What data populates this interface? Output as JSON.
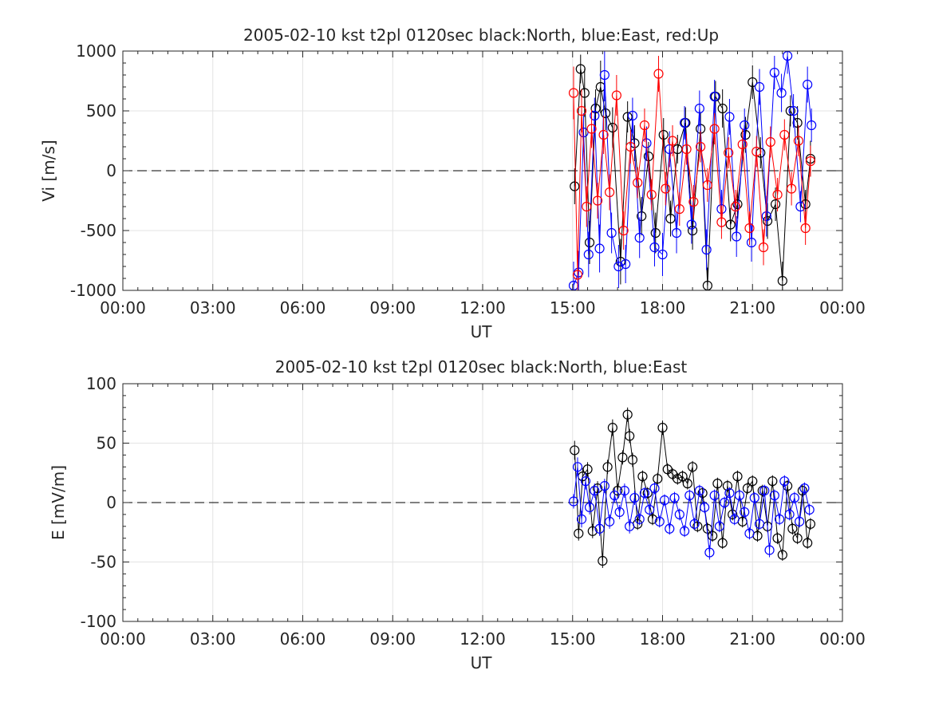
{
  "chart_data": [
    {
      "type": "scatter",
      "title": "2005-02-10 kst t2pl 0120sec black:North, blue:East, red:Up",
      "xlabel": "UT",
      "ylabel": "Vi [m/s]",
      "xlim": [
        "00:00",
        "00:00"
      ],
      "ylim": [
        -1000,
        1000
      ],
      "xticks": [
        "00:00",
        "03:00",
        "06:00",
        "09:00",
        "12:00",
        "15:00",
        "18:00",
        "21:00",
        "00:00"
      ],
      "yticks": [
        "1000",
        "500",
        "0",
        "-500",
        "-1000"
      ],
      "grid": true,
      "zero_line": "dashed",
      "series": [
        {
          "color": "#000000",
          "description_color": "black",
          "x": [
            "15:04",
            "15:16",
            "15:24",
            "15:34",
            "15:46",
            "15:56",
            "16:06",
            "16:20",
            "16:36",
            "16:50",
            "17:04",
            "17:18",
            "17:32",
            "17:46",
            "18:02",
            "18:16",
            "18:30",
            "18:46",
            "19:00",
            "19:16",
            "19:30",
            "19:46",
            "20:00",
            "20:16",
            "20:30",
            "20:46",
            "21:00",
            "21:16",
            "21:30",
            "21:46",
            "22:00",
            "22:16",
            "22:30",
            "22:46",
            "22:56"
          ],
          "y": [
            -130,
            850,
            650,
            -600,
            520,
            700,
            480,
            360,
            -760,
            450,
            230,
            -380,
            120,
            -520,
            300,
            -400,
            180,
            400,
            -500,
            350,
            -960,
            620,
            520,
            -450,
            -280,
            300,
            740,
            150,
            -420,
            -280,
            -920,
            500,
            400,
            -280,
            100
          ],
          "yerr": [
            150,
            120,
            200,
            180,
            160,
            220,
            140,
            170,
            190,
            130,
            150,
            160,
            120,
            170,
            140,
            150,
            120,
            130,
            160,
            140,
            150,
            130,
            160,
            140,
            120,
            150,
            140,
            130,
            150,
            140,
            160,
            130,
            140,
            120,
            150
          ]
        },
        {
          "color": "#0000ff",
          "description_color": "blue",
          "x": [
            "15:02",
            "15:12",
            "15:22",
            "15:32",
            "15:44",
            "15:54",
            "16:04",
            "16:18",
            "16:32",
            "16:46",
            "17:00",
            "17:14",
            "17:28",
            "17:44",
            "18:00",
            "18:14",
            "18:28",
            "18:44",
            "18:58",
            "19:14",
            "19:28",
            "19:44",
            "19:58",
            "20:14",
            "20:28",
            "20:44",
            "20:58",
            "21:14",
            "21:28",
            "21:44",
            "21:58",
            "22:10",
            "22:22",
            "22:36",
            "22:50",
            "22:58"
          ],
          "y": [
            -960,
            -850,
            320,
            -700,
            460,
            -650,
            800,
            -520,
            -800,
            -780,
            460,
            -560,
            230,
            -640,
            -700,
            180,
            -520,
            400,
            -450,
            520,
            -660,
            620,
            -320,
            450,
            -550,
            380,
            -600,
            700,
            -380,
            820,
            650,
            960,
            500,
            -300,
            720,
            380
          ],
          "yerr": [
            200,
            180,
            160,
            190,
            150,
            200,
            220,
            170,
            180,
            160,
            150,
            170,
            140,
            160,
            180,
            150,
            170,
            140,
            160,
            150,
            170,
            140,
            160,
            150,
            170,
            140,
            160,
            150,
            170,
            140,
            160,
            150,
            140,
            130,
            150,
            140
          ]
        },
        {
          "color": "#ff0000",
          "description_color": "red",
          "x": [
            "15:02",
            "15:10",
            "15:18",
            "15:28",
            "15:38",
            "15:50",
            "16:02",
            "16:14",
            "16:28",
            "16:42",
            "16:56",
            "17:10",
            "17:24",
            "17:38",
            "17:52",
            "18:06",
            "18:20",
            "18:34",
            "18:48",
            "19:02",
            "19:16",
            "19:30",
            "19:44",
            "19:58",
            "20:12",
            "20:26",
            "20:40",
            "20:54",
            "21:08",
            "21:22",
            "21:36",
            "21:50",
            "22:04",
            "22:18",
            "22:32",
            "22:46",
            "22:56"
          ],
          "y": [
            650,
            -870,
            500,
            -300,
            350,
            -250,
            300,
            -180,
            630,
            -500,
            200,
            -100,
            380,
            -200,
            810,
            -150,
            250,
            -320,
            180,
            -260,
            200,
            -120,
            350,
            -430,
            150,
            -300,
            220,
            -480,
            160,
            -640,
            240,
            -200,
            300,
            -150,
            250,
            -480,
            80
          ],
          "yerr": [
            220,
            200,
            180,
            170,
            160,
            150,
            160,
            150,
            170,
            160,
            140,
            130,
            140,
            130,
            150,
            140,
            130,
            140,
            130,
            140,
            130,
            140,
            130,
            140,
            130,
            140,
            130,
            140,
            130,
            150,
            130,
            140,
            130,
            140,
            130,
            140,
            130
          ]
        }
      ]
    },
    {
      "type": "scatter",
      "title": "2005-02-10 kst t2pl 0120sec black:North, blue:East",
      "xlabel": "UT",
      "ylabel": "E [mV/m]",
      "xlim": [
        "00:00",
        "00:00"
      ],
      "ylim": [
        -100,
        100
      ],
      "xticks": [
        "00:00",
        "03:00",
        "06:00",
        "09:00",
        "12:00",
        "15:00",
        "18:00",
        "21:00",
        "00:00"
      ],
      "yticks": [
        "100",
        "50",
        "0",
        "-50",
        "-100"
      ],
      "grid": true,
      "zero_line": "dashed",
      "series": [
        {
          "color": "#000000",
          "description_color": "black",
          "x": [
            "15:04",
            "15:12",
            "15:20",
            "15:30",
            "15:40",
            "15:50",
            "16:00",
            "16:10",
            "16:20",
            "16:30",
            "16:40",
            "16:50",
            "16:54",
            "17:00",
            "17:10",
            "17:20",
            "17:30",
            "17:40",
            "17:50",
            "18:00",
            "18:10",
            "18:20",
            "18:30",
            "18:40",
            "18:50",
            "19:00",
            "19:10",
            "19:20",
            "19:30",
            "19:40",
            "19:50",
            "20:00",
            "20:10",
            "20:20",
            "20:30",
            "20:40",
            "20:50",
            "21:00",
            "21:10",
            "21:20",
            "21:30",
            "21:40",
            "21:50",
            "22:00",
            "22:10",
            "22:20",
            "22:30",
            "22:40",
            "22:50",
            "22:56"
          ],
          "y": [
            44,
            -26,
            22,
            28,
            -24,
            12,
            -49,
            30,
            63,
            10,
            38,
            74,
            56,
            36,
            -18,
            22,
            8,
            -14,
            20,
            63,
            28,
            24,
            20,
            22,
            16,
            30,
            -20,
            8,
            -22,
            -28,
            16,
            -34,
            14,
            -10,
            22,
            -16,
            12,
            18,
            -28,
            10,
            -20,
            18,
            -30,
            -44,
            14,
            -22,
            -30,
            10,
            -34,
            -18
          ],
          "yerr": [
            8,
            6,
            7,
            6,
            6,
            6,
            6,
            6,
            7,
            6,
            6,
            6,
            6,
            6,
            5,
            5,
            5,
            5,
            5,
            6,
            5,
            5,
            5,
            5,
            5,
            5,
            5,
            5,
            5,
            5,
            5,
            5,
            5,
            5,
            5,
            5,
            5,
            5,
            5,
            5,
            5,
            5,
            5,
            5,
            5,
            5,
            5,
            5,
            5,
            5
          ]
        },
        {
          "color": "#0000ff",
          "description_color": "blue",
          "x": [
            "15:02",
            "15:10",
            "15:18",
            "15:26",
            "15:34",
            "15:44",
            "15:54",
            "16:04",
            "16:14",
            "16:24",
            "16:34",
            "16:44",
            "16:54",
            "17:04",
            "17:14",
            "17:24",
            "17:34",
            "17:44",
            "17:54",
            "18:04",
            "18:14",
            "18:24",
            "18:34",
            "18:44",
            "18:54",
            "19:04",
            "19:14",
            "19:24",
            "19:34",
            "19:44",
            "19:54",
            "20:04",
            "20:14",
            "20:24",
            "20:34",
            "20:44",
            "20:54",
            "21:04",
            "21:14",
            "21:24",
            "21:34",
            "21:44",
            "21:54",
            "22:04",
            "22:14",
            "22:24",
            "22:34",
            "22:44",
            "22:54"
          ],
          "y": [
            1,
            30,
            -14,
            18,
            -4,
            10,
            -22,
            14,
            -16,
            6,
            -8,
            10,
            -20,
            4,
            -14,
            8,
            -6,
            12,
            -16,
            2,
            -22,
            4,
            -10,
            -24,
            6,
            -18,
            10,
            -4,
            -42,
            6,
            -20,
            0,
            8,
            -14,
            6,
            -8,
            -26,
            4,
            -18,
            10,
            -40,
            6,
            -14,
            18,
            -10,
            4,
            -16,
            12,
            -6
          ],
          "yerr": [
            6,
            8,
            7,
            7,
            6,
            6,
            6,
            6,
            6,
            6,
            6,
            6,
            6,
            6,
            5,
            5,
            5,
            5,
            5,
            5,
            5,
            5,
            5,
            5,
            5,
            5,
            5,
            5,
            6,
            5,
            5,
            5,
            5,
            5,
            5,
            5,
            5,
            5,
            5,
            5,
            6,
            5,
            5,
            5,
            5,
            5,
            5,
            5,
            5
          ]
        }
      ]
    }
  ]
}
